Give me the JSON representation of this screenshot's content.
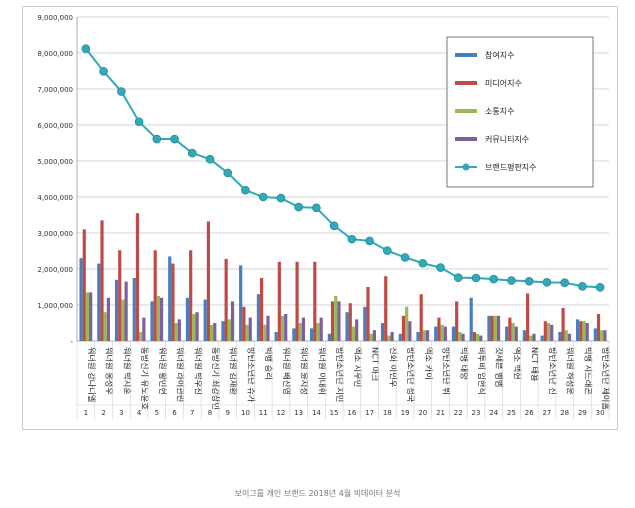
{
  "caption": "보이그룹 개인 브랜드 2018년 4월 빅데이터 분석",
  "chart_data": {
    "type": "bar",
    "ylim": [
      0,
      9000000
    ],
    "yticks": [
      "-",
      "1,000,000",
      "2,000,000",
      "3,000,000",
      "4,000,000",
      "5,000,000",
      "6,000,000",
      "7,000,000",
      "8,000,000",
      "9,000,000"
    ],
    "grid": true,
    "legend_position": "top-right",
    "categories": [
      "워너원 강다니엘",
      "워너원 옹성우",
      "워너원 박지훈",
      "동방신기 유노윤호",
      "워너원 황민현",
      "워너원 라이관린",
      "워너원 박우진",
      "동방신기 최강창민",
      "워너원 김재환",
      "방탄소년단 슈가",
      "빅뱅 승리",
      "워너원 배진영",
      "워너원 윤지성",
      "워너원 이대휘",
      "방탄소년단 지민",
      "엑소 시우민",
      "NCT 마크",
      "신화 이민우",
      "방탄소년단 정국",
      "엑소 카이",
      "방탄소년단 뷔",
      "빅뱅 태양",
      "비투비 임현식",
      "갓세븐 뱀뱀",
      "엑소 백현",
      "NCT 태용",
      "방탄소년단 진",
      "워너원 하성운",
      "빅뱅 지드래곤",
      "방탄소년단 제이홉"
    ],
    "ranks": [
      "1",
      "2",
      "3",
      "4",
      "5",
      "6",
      "7",
      "8",
      "9",
      "10",
      "11",
      "12",
      "13",
      "14",
      "15",
      "16",
      "17",
      "18",
      "19",
      "20",
      "21",
      "22",
      "23",
      "24",
      "25",
      "26",
      "27",
      "28",
      "29",
      "30"
    ],
    "series": [
      {
        "name": "참여지수",
        "color": "#4a7ebb",
        "values": [
          2300000,
          2150000,
          1700000,
          1750000,
          1100000,
          2350000,
          1200000,
          1150000,
          550000,
          2100000,
          1300000,
          250000,
          350000,
          350000,
          200000,
          800000,
          950000,
          500000,
          200000,
          250000,
          400000,
          400000,
          1200000,
          700000,
          400000,
          300000,
          150000,
          250000,
          600000,
          350000
        ]
      },
      {
        "name": "미디어지수",
        "color": "#be4b48",
        "values": [
          3100000,
          3350000,
          2520000,
          3550000,
          2520000,
          2150000,
          2520000,
          3320000,
          2280000,
          950000,
          1750000,
          2200000,
          2200000,
          2200000,
          1100000,
          1050000,
          1500000,
          1800000,
          700000,
          1300000,
          650000,
          1100000,
          250000,
          700000,
          650000,
          1320000,
          550000,
          920000,
          550000,
          750000
        ]
      },
      {
        "name": "소통지수",
        "color": "#98b954",
        "values": [
          1350000,
          800000,
          1150000,
          250000,
          1250000,
          500000,
          750000,
          450000,
          600000,
          450000,
          450000,
          700000,
          500000,
          500000,
          1250000,
          400000,
          200000,
          150000,
          950000,
          300000,
          450000,
          250000,
          200000,
          700000,
          500000,
          150000,
          500000,
          300000,
          550000,
          300000
        ]
      },
      {
        "name": "커뮤니티지수",
        "color": "#7d60a0",
        "values": [
          1350000,
          1200000,
          1650000,
          650000,
          1200000,
          600000,
          800000,
          500000,
          1100000,
          650000,
          700000,
          750000,
          650000,
          650000,
          1100000,
          600000,
          300000,
          250000,
          550000,
          300000,
          400000,
          200000,
          150000,
          700000,
          400000,
          200000,
          450000,
          200000,
          500000,
          300000
        ]
      },
      {
        "name": "브랜드평판지수",
        "color": "#31a9b8",
        "type": "line",
        "values": [
          8120000,
          7490000,
          6930000,
          6090000,
          5610000,
          5610000,
          5220000,
          5050000,
          4670000,
          4190000,
          4000000,
          3970000,
          3720000,
          3700000,
          3200000,
          2830000,
          2780000,
          2510000,
          2320000,
          2160000,
          2040000,
          1760000,
          1750000,
          1720000,
          1680000,
          1660000,
          1630000,
          1620000,
          1520000,
          1490000
        ]
      }
    ]
  }
}
